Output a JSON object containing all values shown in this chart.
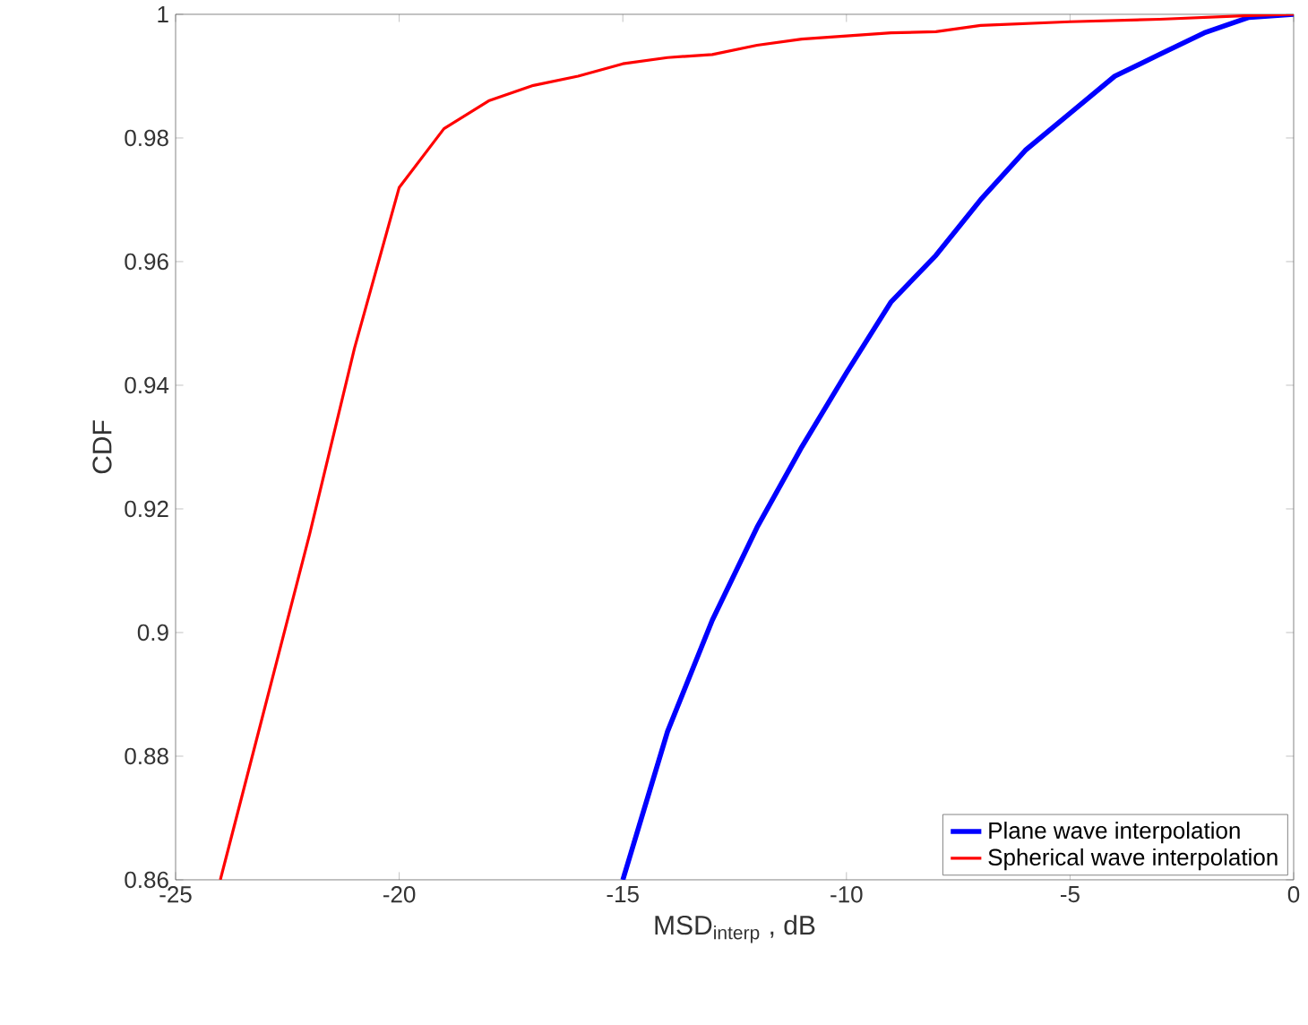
{
  "chart_data": {
    "type": "line",
    "xlabel": "MSD$_{interp}$ , dB",
    "ylabel": "CDF",
    "xlim": [
      -25,
      0
    ],
    "xticks": [
      -25,
      -20,
      -15,
      -10,
      -5,
      0
    ],
    "ylim": [
      0.86,
      1
    ],
    "yticks": [
      0.86,
      0.88,
      0.9,
      0.92,
      0.94,
      0.96,
      0.98,
      1
    ],
    "legend": "bottom right",
    "grid": false,
    "series": [
      {
        "name": "Plane wave interpolation",
        "color": "#0000ff",
        "x": [
          -15,
          -14,
          -13,
          -12,
          -11,
          -10,
          -9,
          -8,
          -7,
          -6,
          -5,
          -4,
          -3,
          -2,
          -1,
          0
        ],
        "values": [
          0.86,
          0.884,
          0.902,
          0.917,
          0.93,
          0.942,
          0.9535,
          0.961,
          0.97,
          0.978,
          0.984,
          0.99,
          0.9935,
          0.997,
          0.9995,
          1
        ]
      },
      {
        "name": "Spherical wave interpolation",
        "color": "#ff0000",
        "x": [
          -24,
          -23,
          -22,
          -21,
          -20,
          -19,
          -18,
          -17,
          -16,
          -15,
          -14,
          -13,
          -12,
          -11,
          -10,
          -9,
          -8,
          -7,
          -6,
          -5,
          -4,
          -3,
          -2,
          -1,
          0
        ],
        "values": [
          0.86,
          0.888,
          0.916,
          0.946,
          0.972,
          0.9815,
          0.986,
          0.9885,
          0.99,
          0.992,
          0.993,
          0.9935,
          0.995,
          0.996,
          0.9965,
          0.997,
          0.9972,
          0.9982,
          0.9985,
          0.9988,
          0.999,
          0.9992,
          0.9995,
          0.9998,
          1
        ]
      }
    ]
  }
}
